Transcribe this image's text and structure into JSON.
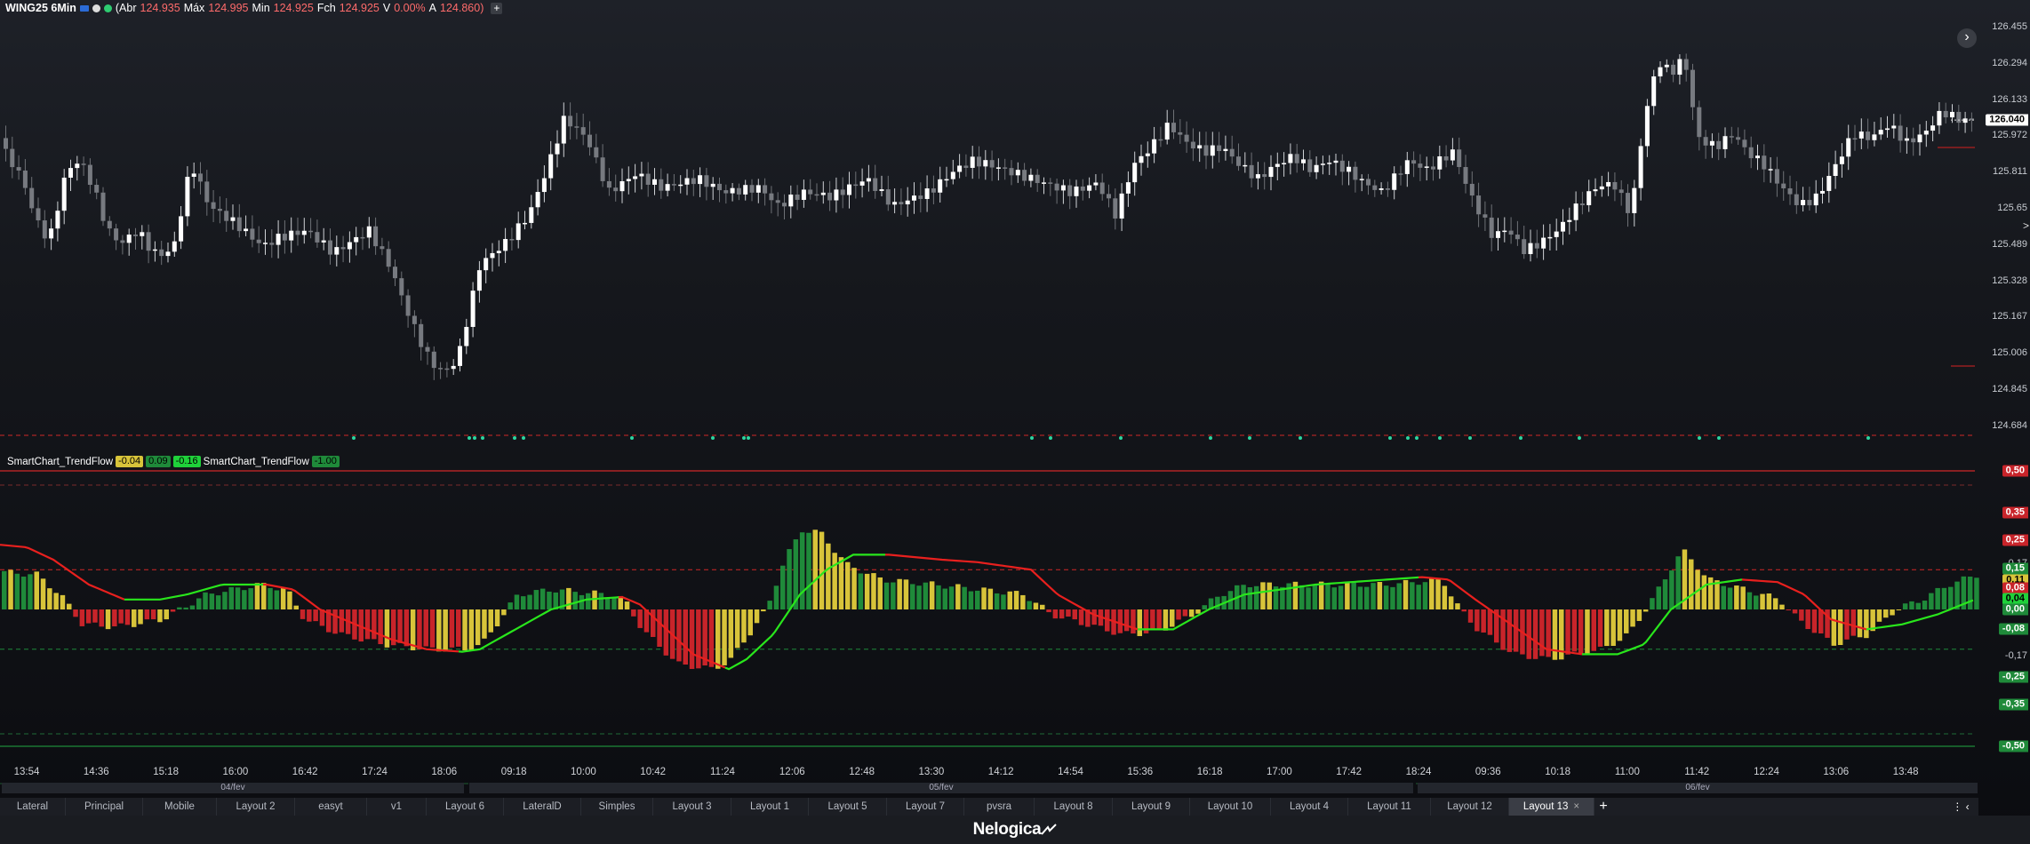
{
  "header": {
    "symbol": "WING25 6Min",
    "open_label": "(Abr",
    "open": "124.935",
    "high_label": "Máx",
    "high": "124.995",
    "low_label": "Min",
    "low": "124.925",
    "close_label": "Fch",
    "close": "124.925",
    "var_label": "V",
    "var": "0.00%",
    "last_label": "A",
    "last": "124.860)",
    "add_label": "+"
  },
  "price_axis": {
    "labels": [
      "126.455",
      "126.294",
      "126.133",
      "125.972",
      "125.811",
      "125.65",
      "125.489",
      "125.328",
      "125.167",
      "125.006",
      "124.845",
      "124.684"
    ],
    "current_price": "126.040"
  },
  "indicator": {
    "legend": [
      {
        "text": "SmartChart_TrendFlow"
      },
      {
        "pill": "-0.04",
        "color": "#d8c43a"
      },
      {
        "pill": "0.09",
        "color": "#1f8a3a"
      },
      {
        "pill": "-0.16",
        "color": "#1fd13a"
      },
      {
        "text": "SmartChart_TrendFlow"
      },
      {
        "pill": "-1.00",
        "color": "#1f8a3a"
      }
    ],
    "axis_tags": [
      {
        "text": "0,50",
        "style": "red"
      },
      {
        "text": "0,35",
        "style": "red"
      },
      {
        "text": "0,25",
        "style": "red"
      },
      {
        "text": "0,17",
        "style": "plain"
      },
      {
        "text": "0,15",
        "style": "green"
      },
      {
        "text": "0,11",
        "style": "yellow"
      },
      {
        "text": "0,08",
        "style": "red"
      },
      {
        "text": "0,04",
        "style": "lime"
      },
      {
        "text": "0,00",
        "style": "green"
      },
      {
        "text": "-0,08",
        "style": "green"
      },
      {
        "text": "-0,17",
        "style": "plain"
      },
      {
        "text": "-0,25",
        "style": "green"
      },
      {
        "text": "-0,35",
        "style": "green"
      },
      {
        "text": "-0,50",
        "style": "green"
      }
    ]
  },
  "time_axis": [
    "13:54",
    "14:36",
    "15:18",
    "16:00",
    "16:42",
    "17:24",
    "18:06",
    "09:18",
    "10:00",
    "10:42",
    "11:24",
    "12:06",
    "12:48",
    "13:30",
    "14:12",
    "14:54",
    "15:36",
    "16:18",
    "17:00",
    "17:42",
    "18:24",
    "09:36",
    "10:18",
    "11:00",
    "11:42",
    "12:24",
    "13:06",
    "13:48"
  ],
  "dates": [
    "04/fev",
    "05/fev",
    "06/fev"
  ],
  "tabs": [
    "Lateral",
    "Principal",
    "Mobile",
    "Layout 2",
    "easyt",
    "v1",
    "Layout 6",
    "LateralD",
    "Simples",
    "Layout 3",
    "Layout 1",
    "Layout 5",
    "Layout 7",
    "pvsra",
    "Layout 8",
    "Layout 9",
    "Layout 10",
    "Layout 4",
    "Layout 11",
    "Layout 12",
    "Layout 13"
  ],
  "active_tab": "Layout 13",
  "tab_close": "×",
  "tab_add": "+",
  "tab_tools": "⋮ ‹",
  "footer_logo": "Nelogica",
  "colors": {
    "bull_candle": "#ffffff",
    "bear_candle": "#777a80",
    "hist_green": "#1f8a3a",
    "hist_red": "#c8242a",
    "hist_yellow": "#d8c43a",
    "line_green": "#29e61c",
    "line_red": "#e8201e"
  }
}
